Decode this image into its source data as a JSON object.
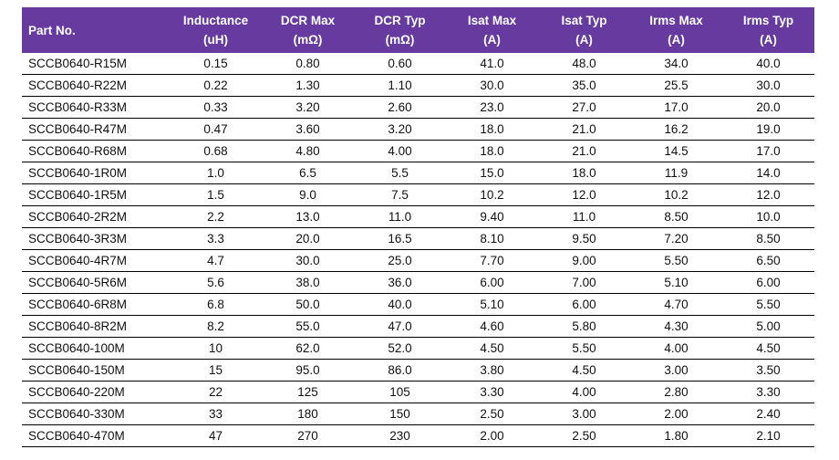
{
  "table": {
    "columns": [
      {
        "label": "Part No.",
        "unit": ""
      },
      {
        "label": "Inductance",
        "unit": "(uH)"
      },
      {
        "label": "DCR Max",
        "unit": "(mΩ)"
      },
      {
        "label": "DCR Typ",
        "unit": "(mΩ)"
      },
      {
        "label": "Isat Max",
        "unit": "(A)"
      },
      {
        "label": "Isat Typ",
        "unit": "(A)"
      },
      {
        "label": "Irms Max",
        "unit": "(A)"
      },
      {
        "label": "Irms Typ",
        "unit": "(A)"
      }
    ],
    "rows": [
      [
        "SCCB0640-R15M",
        "0.15",
        "0.80",
        "0.60",
        "41.0",
        "48.0",
        "34.0",
        "40.0"
      ],
      [
        "SCCB0640-R22M",
        "0.22",
        "1.30",
        "1.10",
        "30.0",
        "35.0",
        "25.5",
        "30.0"
      ],
      [
        "SCCB0640-R33M",
        "0.33",
        "3.20",
        "2.60",
        "23.0",
        "27.0",
        "17.0",
        "20.0"
      ],
      [
        "SCCB0640-R47M",
        "0.47",
        "3.60",
        "3.20",
        "18.0",
        "21.0",
        "16.2",
        "19.0"
      ],
      [
        "SCCB0640-R68M",
        "0.68",
        "4.80",
        "4.00",
        "18.0",
        "21.0",
        "14.5",
        "17.0"
      ],
      [
        "SCCB0640-1R0M",
        "1.0",
        "6.5",
        "5.5",
        "15.0",
        "18.0",
        "11.9",
        "14.0"
      ],
      [
        "SCCB0640-1R5M",
        "1.5",
        "9.0",
        "7.5",
        "10.2",
        "12.0",
        "10.2",
        "12.0"
      ],
      [
        "SCCB0640-2R2M",
        "2.2",
        "13.0",
        "11.0",
        "9.40",
        "11.0",
        "8.50",
        "10.0"
      ],
      [
        "SCCB0640-3R3M",
        "3.3",
        "20.0",
        "16.5",
        "8.10",
        "9.50",
        "7.20",
        "8.50"
      ],
      [
        "SCCB0640-4R7M",
        "4.7",
        "30.0",
        "25.0",
        "7.70",
        "9.00",
        "5.50",
        "6.50"
      ],
      [
        "SCCB0640-5R6M",
        "5.6",
        "38.0",
        "36.0",
        "6.00",
        "7.00",
        "5.10",
        "6.00"
      ],
      [
        "SCCB0640-6R8M",
        "6.8",
        "50.0",
        "40.0",
        "5.10",
        "6.00",
        "4.70",
        "5.50"
      ],
      [
        "SCCB0640-8R2M",
        "8.2",
        "55.0",
        "47.0",
        "4.60",
        "5.80",
        "4.30",
        "5.00"
      ],
      [
        "SCCB0640-100M",
        "10",
        "62.0",
        "52.0",
        "4.50",
        "5.50",
        "4.00",
        "4.50"
      ],
      [
        "SCCB0640-150M",
        "15",
        "95.0",
        "86.0",
        "3.80",
        "4.50",
        "3.00",
        "3.50"
      ],
      [
        "SCCB0640-220M",
        "22",
        "125",
        "105",
        "3.30",
        "4.00",
        "2.80",
        "3.30"
      ],
      [
        "SCCB0640-330M",
        "33",
        "180",
        "150",
        "2.50",
        "3.00",
        "2.00",
        "2.40"
      ],
      [
        "SCCB0640-470M",
        "47",
        "270",
        "230",
        "2.00",
        "2.50",
        "1.80",
        "2.10"
      ]
    ]
  },
  "colors": {
    "header_bg": "#663A9F",
    "header_text": "#FFFFFF",
    "body_text": "#111111",
    "row_border": "#000000"
  }
}
